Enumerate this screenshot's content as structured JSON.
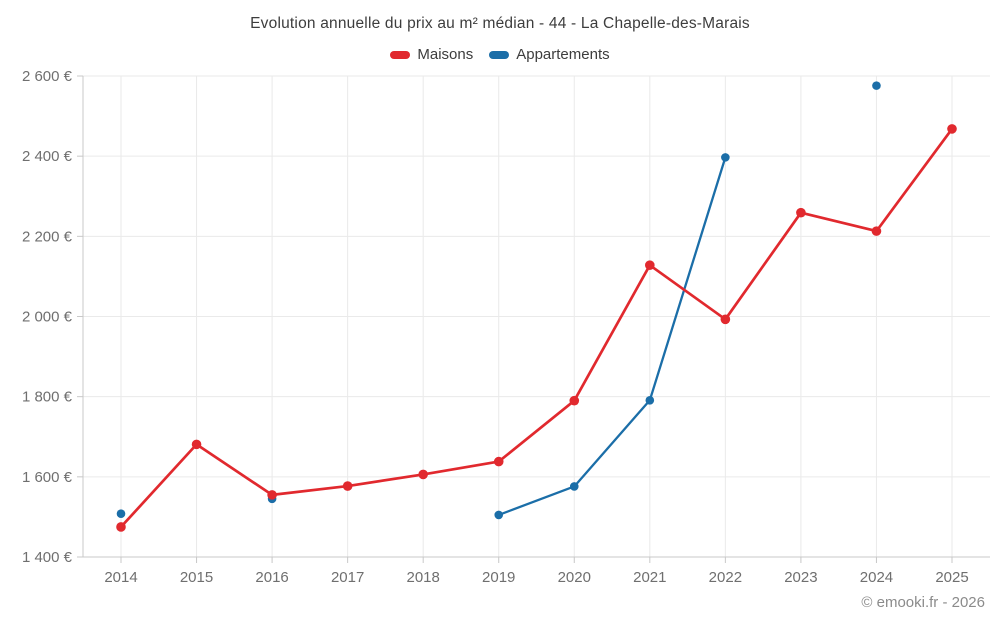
{
  "title": "Evolution annuelle du prix au m² médian - 44 - La Chapelle-des-Marais",
  "footer": "© emooki.fr - 2026",
  "legend": {
    "items": [
      {
        "label": "Maisons",
        "color": "#e1292e"
      },
      {
        "label": "Appartements",
        "color": "#1b6ea8"
      }
    ]
  },
  "chart_data": {
    "type": "line",
    "title": "Evolution annuelle du prix au m² médian - 44 - La Chapelle-des-Marais",
    "x": [
      2014,
      2015,
      2016,
      2017,
      2018,
      2019,
      2020,
      2021,
      2022,
      2023,
      2024,
      2025
    ],
    "x_tick_labels": [
      "2014",
      "2015",
      "2016",
      "2017",
      "2018",
      "2019",
      "2020",
      "2021",
      "2022",
      "2023",
      "2024",
      "2025"
    ],
    "series": [
      {
        "name": "Maisons",
        "color": "#e1292e",
        "values": [
          1475,
          1681,
          1555,
          1577,
          1606,
          1638,
          1790,
          2128,
          1993,
          2259,
          2213,
          2468
        ]
      },
      {
        "name": "Appartements",
        "color": "#1b6ea8",
        "values": [
          1508,
          null,
          1545,
          null,
          null,
          1505,
          1576,
          1791,
          2397,
          null,
          2576,
          null
        ]
      }
    ],
    "ylim": [
      1400,
      2600
    ],
    "ytick_step": 200,
    "y_tick_labels": [
      "1 400 €",
      "1 600 €",
      "1 800 €",
      "2 000 €",
      "2 200 €",
      "2 400 €",
      "2 600 €"
    ],
    "currency_suffix": " €",
    "grid": true,
    "legend_position": "top",
    "colors": {
      "grid_line": "#eaeaea",
      "axis_line": "#c8c8c8",
      "tick_label": "#6f6f6f",
      "title_text": "#3d3d3d",
      "footer_text": "#8b8b8b",
      "background": "#ffffff"
    }
  }
}
